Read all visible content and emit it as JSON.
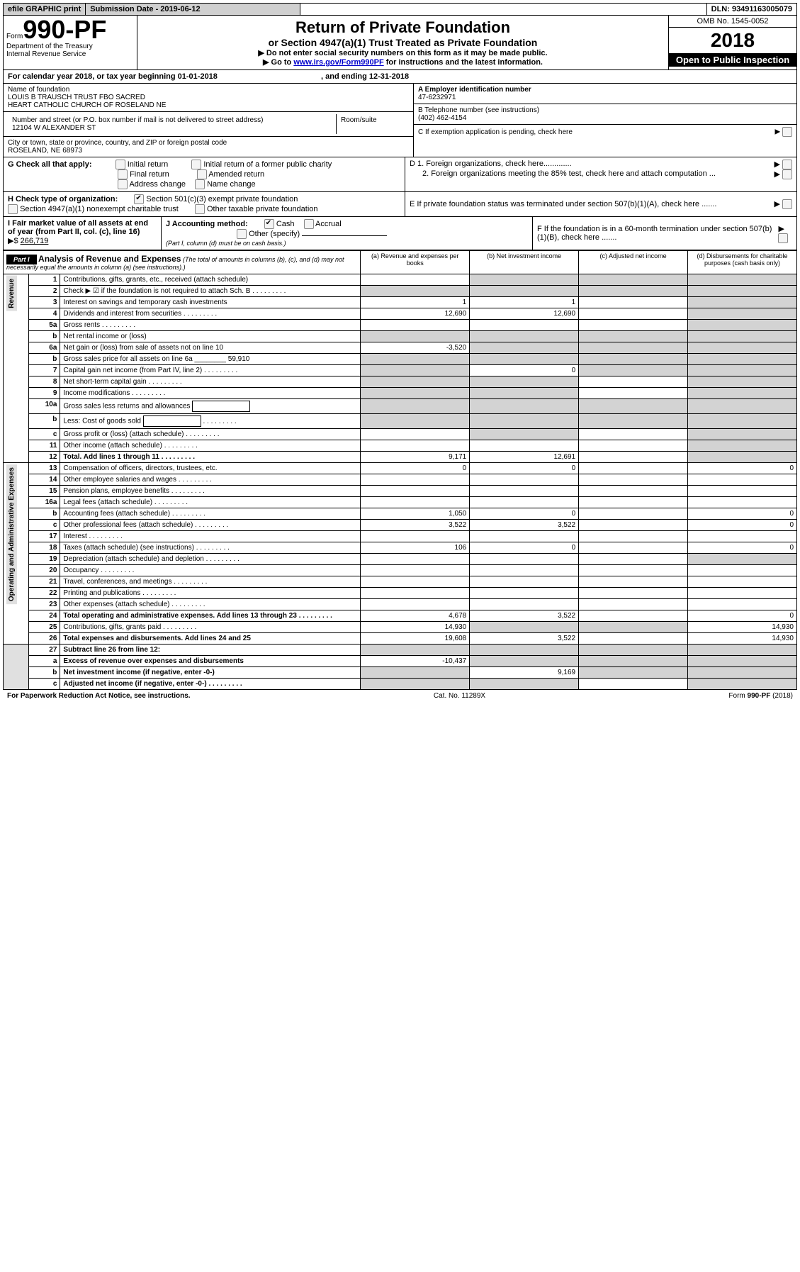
{
  "top": {
    "efile": "efile GRAPHIC print",
    "submission_label": "Submission Date - 2019-06-12",
    "dln_label": "DLN: 93491163005079"
  },
  "header": {
    "form_prefix": "Form",
    "form_number": "990-PF",
    "dept": "Department of the Treasury",
    "irs": "Internal Revenue Service",
    "title": "Return of Private Foundation",
    "subtitle": "or Section 4947(a)(1) Trust Treated as Private Foundation",
    "line1": "▶ Do not enter social security numbers on this form as it may be made public.",
    "line2_pre": "▶ Go to ",
    "line2_link": "www.irs.gov/Form990PF",
    "line2_post": " for instructions and the latest information.",
    "omb": "OMB No. 1545-0052",
    "year": "2018",
    "open": "Open to Public Inspection"
  },
  "calyear": {
    "prefix": "For calendar year 2018, or tax year beginning 01-01-2018",
    "mid": ", and ending 12-31-2018"
  },
  "info": {
    "name_label": "Name of foundation",
    "name1": "LOUIS B TRAUSCH TRUST FBO SACRED",
    "name2": "HEART CATHOLIC CHURCH OF ROSELAND NE",
    "addr_label": "Number and street (or P.O. box number if mail is not delivered to street address)",
    "room_label": "Room/suite",
    "addr": "12104 W ALEXANDER ST",
    "city_label": "City or town, state or province, country, and ZIP or foreign postal code",
    "city": "ROSELAND, NE  68973",
    "a_label": "A Employer identification number",
    "a_val": "47-6232971",
    "b_label": "B Telephone number (see instructions)",
    "b_val": "(402) 462-4154",
    "c_label": "C If exemption application is pending, check here",
    "g_label": "G Check all that apply:",
    "g_opts": [
      "Initial return",
      "Initial return of a former public charity",
      "Final return",
      "Amended return",
      "Address change",
      "Name change"
    ],
    "d1": "D 1. Foreign organizations, check here.............",
    "d2": "2. Foreign organizations meeting the 85% test, check here and attach computation ...",
    "h_label": "H Check type of organization:",
    "h_opt1": "Section 501(c)(3) exempt private foundation",
    "h_opt2": "Section 4947(a)(1) nonexempt charitable trust",
    "h_opt3": "Other taxable private foundation",
    "e_label": "E  If private foundation status was terminated under section 507(b)(1)(A), check here .......",
    "i_label": "I Fair market value of all assets at end of year (from Part II, col. (c), line 16)",
    "i_val": "266,719",
    "j_label": "J Accounting method:",
    "j_cash": "Cash",
    "j_accrual": "Accrual",
    "j_other": "Other (specify)",
    "j_note": "(Part I, column (d) must be on cash basis.)",
    "f_label": "F  If the foundation is in a 60-month termination under section 507(b)(1)(B), check here ......."
  },
  "part1": {
    "badge": "Part I",
    "title": "Analysis of Revenue and Expenses",
    "title_note": "(The total of amounts in columns (b), (c), and (d) may not necessarily equal the amounts in column (a) (see instructions).)",
    "col_a": "(a)   Revenue and expenses per books",
    "col_b": "(b)  Net investment income",
    "col_c": "(c)  Adjusted net income",
    "col_d": "(d)  Disbursements for charitable purposes (cash basis only)",
    "side_rev": "Revenue",
    "side_exp": "Operating and Administrative Expenses"
  },
  "rows_rev": [
    {
      "n": "1",
      "d": "Contributions, gifts, grants, etc., received (attach schedule)",
      "a": "",
      "b": "",
      "c": "",
      "dd": "",
      "bs": true,
      "cs": true,
      "ds": true
    },
    {
      "n": "2",
      "d": "Check ▶ ☑ if the foundation is not required to attach Sch. B",
      "a": "",
      "b": "",
      "c": "",
      "dd": "",
      "as": true,
      "bs": true,
      "cs": true,
      "ds": true,
      "dots": true
    },
    {
      "n": "3",
      "d": "Interest on savings and temporary cash investments",
      "a": "1",
      "b": "1",
      "c": "",
      "dd": "",
      "ds": true
    },
    {
      "n": "4",
      "d": "Dividends and interest from securities",
      "a": "12,690",
      "b": "12,690",
      "c": "",
      "dd": "",
      "ds": true,
      "dots": true
    },
    {
      "n": "5a",
      "d": "Gross rents",
      "a": "",
      "b": "",
      "c": "",
      "dd": "",
      "ds": true,
      "dots": true
    },
    {
      "n": "b",
      "d": "Net rental income or (loss)",
      "a": "",
      "b": "",
      "c": "",
      "dd": "",
      "as": true,
      "bs": true,
      "cs": true,
      "ds": true
    },
    {
      "n": "6a",
      "d": "Net gain or (loss) from sale of assets not on line 10",
      "a": "-3,520",
      "b": "",
      "c": "",
      "dd": "",
      "bs": true,
      "cs": true,
      "ds": true
    },
    {
      "n": "b",
      "d": "Gross sales price for all assets on line 6a ________ 59,910",
      "a": "",
      "b": "",
      "c": "",
      "dd": "",
      "as": true,
      "bs": true,
      "cs": true,
      "ds": true
    },
    {
      "n": "7",
      "d": "Capital gain net income (from Part IV, line 2)",
      "a": "",
      "b": "0",
      "c": "",
      "dd": "",
      "as": true,
      "cs": true,
      "ds": true,
      "dots": true
    },
    {
      "n": "8",
      "d": "Net short-term capital gain",
      "a": "",
      "b": "",
      "c": "",
      "dd": "",
      "as": true,
      "bs": true,
      "ds": true,
      "dots": true
    },
    {
      "n": "9",
      "d": "Income modifications",
      "a": "",
      "b": "",
      "c": "",
      "dd": "",
      "as": true,
      "bs": true,
      "ds": true,
      "dots": true
    },
    {
      "n": "10a",
      "d": "Gross sales less returns and allowances",
      "a": "",
      "b": "",
      "c": "",
      "dd": "",
      "as": true,
      "bs": true,
      "cs": true,
      "ds": true,
      "boxed": true
    },
    {
      "n": "b",
      "d": "Less: Cost of goods sold",
      "a": "",
      "b": "",
      "c": "",
      "dd": "",
      "as": true,
      "bs": true,
      "cs": true,
      "ds": true,
      "boxed": true,
      "dots": true
    },
    {
      "n": "c",
      "d": "Gross profit or (loss) (attach schedule)",
      "a": "",
      "b": "",
      "c": "",
      "dd": "",
      "bs": true,
      "ds": true,
      "dots": true
    },
    {
      "n": "11",
      "d": "Other income (attach schedule)",
      "a": "",
      "b": "",
      "c": "",
      "dd": "",
      "ds": true,
      "dots": true
    },
    {
      "n": "12",
      "d": "Total. Add lines 1 through 11",
      "a": "9,171",
      "b": "12,691",
      "c": "",
      "dd": "",
      "ds": true,
      "bold": true,
      "dots": true
    }
  ],
  "rows_exp": [
    {
      "n": "13",
      "d": "Compensation of officers, directors, trustees, etc.",
      "a": "0",
      "b": "0",
      "c": "",
      "dd": "0"
    },
    {
      "n": "14",
      "d": "Other employee salaries and wages",
      "a": "",
      "b": "",
      "c": "",
      "dd": "",
      "dots": true
    },
    {
      "n": "15",
      "d": "Pension plans, employee benefits",
      "a": "",
      "b": "",
      "c": "",
      "dd": "",
      "dots": true
    },
    {
      "n": "16a",
      "d": "Legal fees (attach schedule)",
      "a": "",
      "b": "",
      "c": "",
      "dd": "",
      "dots": true
    },
    {
      "n": "b",
      "d": "Accounting fees (attach schedule)",
      "a": "1,050",
      "b": "0",
      "c": "",
      "dd": "0",
      "dots": true
    },
    {
      "n": "c",
      "d": "Other professional fees (attach schedule)",
      "a": "3,522",
      "b": "3,522",
      "c": "",
      "dd": "0",
      "dots": true
    },
    {
      "n": "17",
      "d": "Interest",
      "a": "",
      "b": "",
      "c": "",
      "dd": "",
      "dots": true
    },
    {
      "n": "18",
      "d": "Taxes (attach schedule) (see instructions)",
      "a": "106",
      "b": "0",
      "c": "",
      "dd": "0",
      "dots": true
    },
    {
      "n": "19",
      "d": "Depreciation (attach schedule) and depletion",
      "a": "",
      "b": "",
      "c": "",
      "dd": "",
      "ds": true,
      "dots": true
    },
    {
      "n": "20",
      "d": "Occupancy",
      "a": "",
      "b": "",
      "c": "",
      "dd": "",
      "dots": true
    },
    {
      "n": "21",
      "d": "Travel, conferences, and meetings",
      "a": "",
      "b": "",
      "c": "",
      "dd": "",
      "dots": true
    },
    {
      "n": "22",
      "d": "Printing and publications",
      "a": "",
      "b": "",
      "c": "",
      "dd": "",
      "dots": true
    },
    {
      "n": "23",
      "d": "Other expenses (attach schedule)",
      "a": "",
      "b": "",
      "c": "",
      "dd": "",
      "dots": true
    },
    {
      "n": "24",
      "d": "Total operating and administrative expenses. Add lines 13 through 23",
      "a": "4,678",
      "b": "3,522",
      "c": "",
      "dd": "0",
      "bold": true,
      "dots": true
    },
    {
      "n": "25",
      "d": "Contributions, gifts, grants paid",
      "a": "14,930",
      "b": "",
      "c": "",
      "dd": "14,930",
      "bs": true,
      "cs": true,
      "dots": true
    },
    {
      "n": "26",
      "d": "Total expenses and disbursements. Add lines 24 and 25",
      "a": "19,608",
      "b": "3,522",
      "c": "",
      "dd": "14,930",
      "bold": true
    }
  ],
  "rows_end": [
    {
      "n": "27",
      "d": "Subtract line 26 from line 12:",
      "a": "",
      "b": "",
      "c": "",
      "dd": "",
      "as": true,
      "bs": true,
      "cs": true,
      "ds": true,
      "bold": true
    },
    {
      "n": "a",
      "d": "Excess of revenue over expenses and disbursements",
      "a": "-10,437",
      "b": "",
      "c": "",
      "dd": "",
      "bs": true,
      "cs": true,
      "ds": true,
      "bold": true
    },
    {
      "n": "b",
      "d": "Net investment income (if negative, enter -0-)",
      "a": "",
      "b": "9,169",
      "c": "",
      "dd": "",
      "as": true,
      "cs": true,
      "ds": true,
      "bold": true
    },
    {
      "n": "c",
      "d": "Adjusted net income (if negative, enter -0-)",
      "a": "",
      "b": "",
      "c": "",
      "dd": "",
      "as": true,
      "bs": true,
      "ds": true,
      "bold": true,
      "dots": true
    }
  ],
  "footer": {
    "left": "For Paperwork Reduction Act Notice, see instructions.",
    "mid": "Cat. No. 11289X",
    "right": "Form 990-PF (2018)"
  }
}
